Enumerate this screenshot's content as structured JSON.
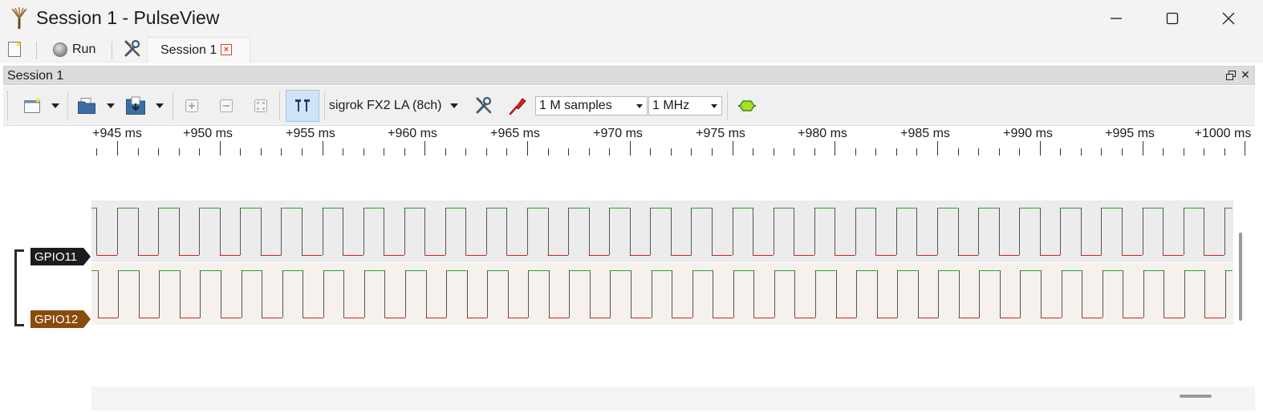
{
  "window": {
    "title": "Session 1 - PulseView",
    "app_icon": "pulseview-probe-icon",
    "controls": [
      "minimize-icon",
      "maximize-icon",
      "close-icon"
    ]
  },
  "session_bar": {
    "new_session_icon": "new-session-icon",
    "run_label": "Run",
    "settings_icon": "settings-tool-icon",
    "tab_label": "Session 1"
  },
  "dock": {
    "title": "Session 1"
  },
  "toolbar": {
    "device_label": "sigrok FX2 LA (8ch)",
    "samples_value": "1 M samples",
    "samplerate_value": "1 MHz",
    "icons": [
      "new-view-icon",
      "open-file-icon",
      "save-file-icon",
      "zoom-in-icon",
      "zoom-out-icon",
      "zoom-fit-icon",
      "cursor-icon",
      "device-config-icon",
      "probe-icon",
      "decoder-icon"
    ]
  },
  "ruler": {
    "ticks": [
      "+945 ms",
      "+950 ms",
      "+955 ms",
      "+960 ms",
      "+965 ms",
      "+970 ms",
      "+975 ms",
      "+980 ms",
      "+985 ms",
      "+990 ms",
      "+995 ms",
      "+1000 ms"
    ]
  },
  "channels": [
    {
      "name": "GPIO11",
      "color": "#1c1c1c",
      "period_ms": 2.0,
      "duty": 0.5
    },
    {
      "name": "GPIO12",
      "color": "#8a4a0c",
      "period_ms": 2.0,
      "duty": 0.5
    }
  ],
  "colors": {
    "signal_high": "#22aa22",
    "signal_low": "#cc2222",
    "edge": "#555555"
  }
}
